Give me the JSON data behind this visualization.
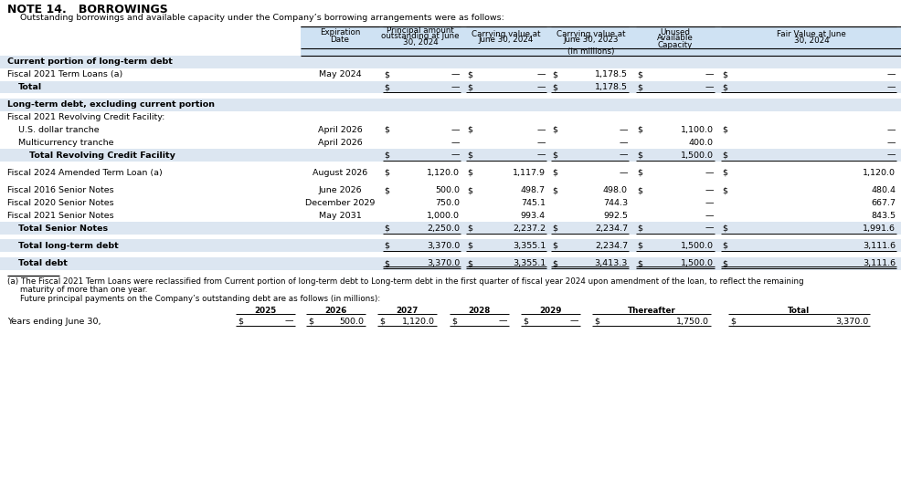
{
  "title": "NOTE 14.   BORROWINGS",
  "subtitle": "Outstanding borrowings and available capacity under the Company’s borrowing arrangements were as follows:",
  "bg_color": "#ffffff",
  "header_bg": "#cfe2f3",
  "row_bg_light": "#dce6f1",
  "col_headers_line1": [
    "",
    "Expiration",
    "Principal amount",
    "Carrying value at",
    "Carrying value at",
    "Unused",
    "Fair Value at June"
  ],
  "col_headers_line2": [
    "",
    "Date",
    "outstanding at June",
    "June 30, 2024",
    "June 30, 2023",
    "Available",
    "30, 2024"
  ],
  "col_headers_line3": [
    "",
    "",
    "30, 2024",
    "",
    "",
    "Capacity",
    ""
  ],
  "subheader": "(in millions)",
  "rows": [
    {
      "label": "Current portion of long-term debt",
      "type": "section_header",
      "indent": 0
    },
    {
      "label": "Fiscal 2021 Term Loans (a)",
      "type": "data",
      "indent": 0,
      "expiration": "May 2024",
      "d1": "$",
      "v1": "—",
      "d2": "$",
      "v2": "—",
      "d3": "$",
      "v3": "1,178.5",
      "d4": "$",
      "v4": "—",
      "d5": "$",
      "v5": "—"
    },
    {
      "label": "Total",
      "type": "total",
      "indent": 1,
      "expiration": "",
      "d1": "$",
      "v1": "—",
      "d2": "$",
      "v2": "—",
      "d3": "$",
      "v3": "1,178.5",
      "d4": "$",
      "v4": "—",
      "d5": "$",
      "v5": "—"
    },
    {
      "label": "",
      "type": "spacer"
    },
    {
      "label": "Long-term debt, excluding current portion",
      "type": "section_header",
      "indent": 0
    },
    {
      "label": "Fiscal 2021 Revolving Credit Facility:",
      "type": "label_only",
      "indent": 0
    },
    {
      "label": "U.S. dollar tranche",
      "type": "data",
      "indent": 1,
      "expiration": "April 2026",
      "d1": "$",
      "v1": "—",
      "d2": "$",
      "v2": "—",
      "d3": "$",
      "v3": "—",
      "d4": "$",
      "v4": "1,100.0",
      "d5": "$",
      "v5": "—"
    },
    {
      "label": "Multicurrency tranche",
      "type": "data",
      "indent": 1,
      "expiration": "April 2026",
      "d1": "",
      "v1": "—",
      "d2": "",
      "v2": "—",
      "d3": "",
      "v3": "—",
      "d4": "",
      "v4": "400.0",
      "d5": "",
      "v5": "—"
    },
    {
      "label": "Total Revolving Credit Facility",
      "type": "total",
      "indent": 2,
      "expiration": "",
      "d1": "$",
      "v1": "—",
      "d2": "$",
      "v2": "—",
      "d3": "$",
      "v3": "—",
      "d4": "$",
      "v4": "1,500.0",
      "d5": "$",
      "v5": "—"
    },
    {
      "label": "",
      "type": "spacer"
    },
    {
      "label": "Fiscal 2024 Amended Term Loan (a)",
      "type": "data",
      "indent": 0,
      "expiration": "August 2026",
      "d1": "$",
      "v1": "1,120.0",
      "d2": "$",
      "v2": "1,117.9",
      "d3": "$",
      "v3": "—",
      "d4": "$",
      "v4": "—",
      "d5": "$",
      "v5": "1,120.0"
    },
    {
      "label": "",
      "type": "spacer"
    },
    {
      "label": "Fiscal 2016 Senior Notes",
      "type": "data",
      "indent": 0,
      "expiration": "June 2026",
      "d1": "$",
      "v1": "500.0",
      "d2": "$",
      "v2": "498.7",
      "d3": "$",
      "v3": "498.0",
      "d4": "$",
      "v4": "—",
      "d5": "$",
      "v5": "480.4"
    },
    {
      "label": "Fiscal 2020 Senior Notes",
      "type": "data",
      "indent": 0,
      "expiration": "December 2029",
      "d1": "",
      "v1": "750.0",
      "d2": "",
      "v2": "745.1",
      "d3": "",
      "v3": "744.3",
      "d4": "",
      "v4": "—",
      "d5": "",
      "v5": "667.7"
    },
    {
      "label": "Fiscal 2021 Senior Notes",
      "type": "data",
      "indent": 0,
      "expiration": "May 2031",
      "d1": "",
      "v1": "1,000.0",
      "d2": "",
      "v2": "993.4",
      "d3": "",
      "v3": "992.5",
      "d4": "",
      "v4": "—",
      "d5": "",
      "v5": "843.5"
    },
    {
      "label": "Total Senior Notes",
      "type": "total",
      "indent": 1,
      "expiration": "",
      "d1": "$",
      "v1": "2,250.0",
      "d2": "$",
      "v2": "2,237.2",
      "d3": "$",
      "v3": "2,234.7",
      "d4": "$",
      "v4": "—",
      "d5": "$",
      "v5": "1,991.6"
    },
    {
      "label": "",
      "type": "spacer"
    },
    {
      "label": "Total long-term debt",
      "type": "total2",
      "indent": 1,
      "expiration": "",
      "d1": "$",
      "v1": "3,370.0",
      "d2": "$",
      "v2": "3,355.1",
      "d3": "$",
      "v3": "2,234.7",
      "d4": "$",
      "v4": "1,500.0",
      "d5": "$",
      "v5": "3,111.6"
    },
    {
      "label": "",
      "type": "spacer"
    },
    {
      "label": "Total debt",
      "type": "total3",
      "indent": 1,
      "expiration": "",
      "d1": "$",
      "v1": "3,370.0",
      "d2": "$",
      "v2": "3,355.1",
      "d3": "$",
      "v3": "3,413.3",
      "d4": "$",
      "v4": "1,500.0",
      "d5": "$",
      "v5": "3,111.6"
    }
  ],
  "footnote1": "(a) The Fiscal 2021 Term Loans were reclassified from Current portion of long-term debt to Long-term debt in the first quarter of fiscal year 2024 upon amendment of the loan, to reflect the remaining",
  "footnote2": "maturity of more than one year.",
  "footnote3": "Future principal payments on the Company’s outstanding debt are as follows (in millions):",
  "fp_headers": [
    "2025",
    "2026",
    "2027",
    "2028",
    "2029",
    "Thereafter",
    "Total"
  ],
  "fp_label": "Years ending June 30,",
  "fp_values": [
    "—",
    "500.0",
    "1,120.0",
    "—",
    "—",
    "1,750.0",
    "3,370.0"
  ]
}
